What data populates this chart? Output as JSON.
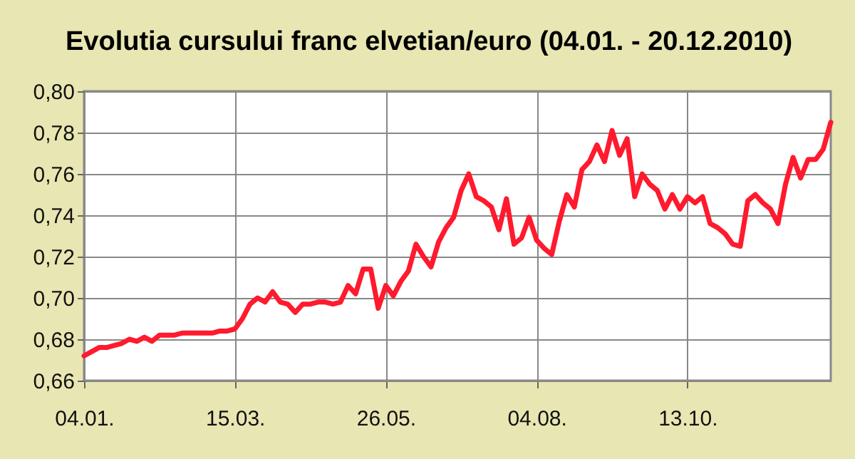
{
  "chart_data": {
    "type": "line",
    "title": "Evolutia cursului franc elvetian/euro (04.01. - 20.12.2010)",
    "categories": [
      "04.01.",
      null,
      null,
      null,
      null,
      null,
      null,
      null,
      null,
      null,
      null,
      null,
      null,
      null,
      null,
      null,
      null,
      null,
      null,
      null,
      "15.03.",
      null,
      null,
      null,
      null,
      null,
      null,
      null,
      null,
      null,
      null,
      null,
      null,
      null,
      null,
      null,
      null,
      null,
      null,
      null,
      "26.05.",
      null,
      null,
      null,
      null,
      null,
      null,
      null,
      null,
      null,
      null,
      null,
      null,
      null,
      null,
      null,
      null,
      null,
      null,
      null,
      "04.08.",
      null,
      null,
      null,
      null,
      null,
      null,
      null,
      null,
      null,
      null,
      null,
      null,
      null,
      null,
      null,
      null,
      null,
      null,
      null,
      "13.10.",
      null,
      null,
      null,
      null,
      null,
      null,
      null,
      null,
      null,
      null,
      null,
      null,
      null,
      null,
      null,
      null,
      null,
      null,
      null
    ],
    "series": [
      {
        "color": "#ff1a2e",
        "values": [
          0.672,
          0.674,
          0.676,
          0.676,
          0.677,
          0.678,
          0.68,
          0.679,
          0.681,
          0.679,
          0.682,
          0.682,
          0.682,
          0.683,
          0.683,
          0.683,
          0.683,
          0.683,
          0.684,
          0.684,
          0.685,
          0.69,
          0.697,
          0.7,
          0.698,
          0.703,
          0.698,
          0.697,
          0.693,
          0.697,
          0.697,
          0.698,
          0.698,
          0.697,
          0.698,
          0.706,
          0.702,
          0.714,
          0.714,
          0.695,
          0.706,
          0.701,
          0.708,
          0.713,
          0.726,
          0.72,
          0.715,
          0.727,
          0.734,
          0.739,
          0.752,
          0.76,
          0.749,
          0.747,
          0.744,
          0.733,
          0.748,
          0.726,
          0.729,
          0.739,
          0.728,
          0.724,
          0.721,
          0.737,
          0.75,
          0.744,
          0.762,
          0.766,
          0.774,
          0.766,
          0.781,
          0.769,
          0.777,
          0.749,
          0.76,
          0.755,
          0.752,
          0.743,
          0.75,
          0.743,
          0.749,
          0.746,
          0.749,
          0.736,
          0.734,
          0.731,
          0.726,
          0.725,
          0.747,
          0.75,
          0.746,
          0.743,
          0.736,
          0.755,
          0.768,
          0.758,
          0.767,
          0.767,
          0.772,
          0.785
        ]
      }
    ],
    "ylim": [
      0.66,
      0.8
    ],
    "yticks": [
      {
        "value": 0.66,
        "label": "0,66"
      },
      {
        "value": 0.68,
        "label": "0,68"
      },
      {
        "value": 0.7,
        "label": "0,70"
      },
      {
        "value": 0.72,
        "label": "0,72"
      },
      {
        "value": 0.74,
        "label": "0,74"
      },
      {
        "value": 0.76,
        "label": "0,76"
      },
      {
        "value": 0.78,
        "label": "0,78"
      },
      {
        "value": 0.8,
        "label": "0,80"
      }
    ],
    "grid": true,
    "line_style": "solid"
  }
}
